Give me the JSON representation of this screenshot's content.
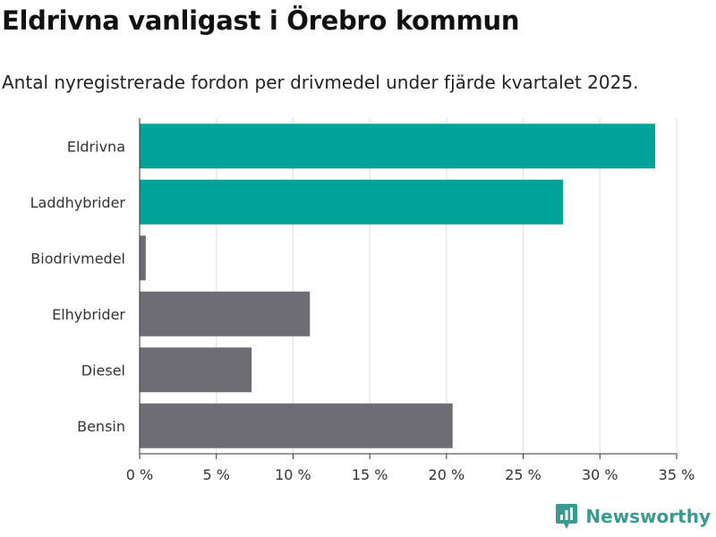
{
  "header": {
    "title": "Eldrivna vanligast i Örebro kommun",
    "subtitle": "Antal nyregistrerade fordon per drivmedel under fjärde kvartalet 2025."
  },
  "brand": {
    "name": "Newsworthy",
    "logo_icon": "bar-chart-pin-logo-icon",
    "color": "#3a9a90"
  },
  "colors": {
    "highlight": "#00a398",
    "default": "#6e6d73",
    "grid": "#dddddd",
    "axis": "#333333"
  },
  "chart_data": {
    "type": "bar",
    "orientation": "horizontal",
    "title": "Eldrivna vanligast i Örebro kommun",
    "subtitle": "Antal nyregistrerade fordon per drivmedel under fjärde kvartalet 2025.",
    "categories": [
      "Eldrivna",
      "Laddhybrider",
      "Biodrivmedel",
      "Elhybrider",
      "Diesel",
      "Bensin"
    ],
    "values": [
      33.6,
      27.6,
      0.4,
      11.1,
      7.3,
      20.4
    ],
    "highlighted": [
      true,
      true,
      false,
      false,
      false,
      false
    ],
    "unit": "%",
    "xlim": [
      0,
      35
    ],
    "ticks": [
      0,
      5,
      10,
      15,
      20,
      25,
      30,
      35
    ],
    "tick_labels": [
      "0 %",
      "5 %",
      "10 %",
      "15 %",
      "20 %",
      "25 %",
      "30 %",
      "35 %"
    ],
    "xlabel": "",
    "ylabel": "",
    "grid": true,
    "legend": "none"
  }
}
